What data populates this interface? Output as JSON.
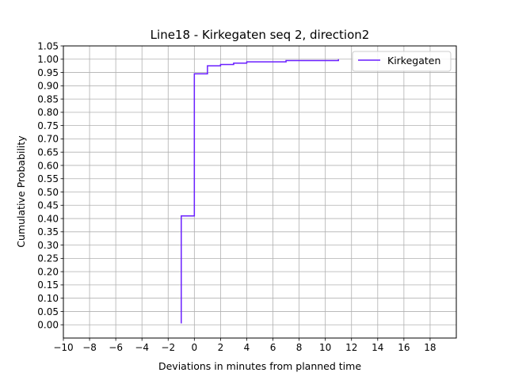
{
  "chart_data": {
    "type": "line",
    "step": true,
    "title": "Line18 - Kirkegaten seq 2, direction2",
    "xlabel": "Deviations in minutes from planned time",
    "ylabel": "Cumulative Probability",
    "xlim": [
      -10,
      20
    ],
    "ylim": [
      -0.05,
      1.05
    ],
    "x_ticks": [
      -10,
      -8,
      -6,
      -4,
      -2,
      0,
      2,
      4,
      6,
      8,
      10,
      12,
      14,
      16,
      18
    ],
    "x_tick_labels": [
      "−10",
      "−8",
      "−6",
      "−4",
      "−2",
      "0",
      "2",
      "4",
      "6",
      "8",
      "10",
      "12",
      "14",
      "16",
      "18"
    ],
    "y_ticks": [
      0.0,
      0.05,
      0.1,
      0.15,
      0.2,
      0.25,
      0.3,
      0.35,
      0.4,
      0.45,
      0.5,
      0.55,
      0.6,
      0.65,
      0.7,
      0.75,
      0.8,
      0.85,
      0.9,
      0.95,
      1.0,
      1.05
    ],
    "y_tick_labels": [
      "0.00",
      "0.05",
      "0.10",
      "0.15",
      "0.20",
      "0.25",
      "0.30",
      "0.35",
      "0.40",
      "0.45",
      "0.50",
      "0.55",
      "0.60",
      "0.65",
      "0.70",
      "0.75",
      "0.80",
      "0.85",
      "0.90",
      "0.95",
      "1.00",
      "1.05"
    ],
    "grid": true,
    "legend_position": "top-right",
    "series": [
      {
        "name": "Kirkegaten",
        "color": "#6a1fff",
        "x": [
          -1,
          -1,
          0,
          0,
          1,
          1,
          2,
          2,
          3,
          3,
          4,
          4,
          7,
          7,
          11,
          11
        ],
        "y": [
          0.005,
          0.41,
          0.41,
          0.945,
          0.945,
          0.975,
          0.975,
          0.98,
          0.98,
          0.985,
          0.985,
          0.99,
          0.99,
          0.995,
          0.995,
          1.0
        ]
      }
    ]
  }
}
